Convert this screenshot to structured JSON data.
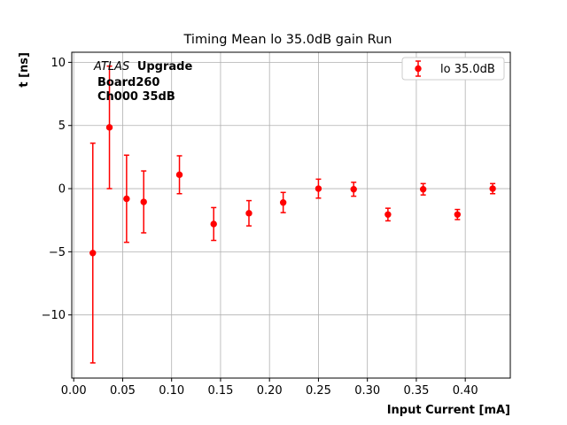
{
  "chart_data": {
    "type": "scatter",
    "title": "Timing Mean lo 35.0dB gain Run",
    "xlabel": "Input Current [mA]",
    "ylabel": "t [ns]",
    "xlim": [
      -0.002,
      0.446
    ],
    "ylim": [
      -15.0,
      10.8
    ],
    "x_ticks": [
      0.0,
      0.05,
      0.1,
      0.15,
      0.2,
      0.25,
      0.3,
      0.35,
      0.4
    ],
    "x_tick_labels": [
      "0.00",
      "0.05",
      "0.10",
      "0.15",
      "0.20",
      "0.25",
      "0.30",
      "0.35",
      "0.40"
    ],
    "y_ticks": [
      10,
      5,
      0,
      -5,
      -10
    ],
    "y_tick_labels": [
      "10",
      "5",
      "0",
      "−5",
      "−10"
    ],
    "grid": true,
    "legend_position": "top-right",
    "series": [
      {
        "name": "lo 35.0dB",
        "color": "#ff0000",
        "marker": "circle",
        "error_bars": true,
        "points": [
          {
            "x": 0.0195,
            "y": -5.1,
            "err": 8.7
          },
          {
            "x": 0.0365,
            "y": 4.85,
            "err": 4.85
          },
          {
            "x": 0.054,
            "y": -0.8,
            "err": 3.45
          },
          {
            "x": 0.0715,
            "y": -1.05,
            "err": 2.45
          },
          {
            "x": 0.108,
            "y": 1.1,
            "err": 1.5
          },
          {
            "x": 0.143,
            "y": -2.8,
            "err": 1.3
          },
          {
            "x": 0.179,
            "y": -1.95,
            "err": 1.0
          },
          {
            "x": 0.214,
            "y": -1.1,
            "err": 0.8
          },
          {
            "x": 0.25,
            "y": 0.0,
            "err": 0.75
          },
          {
            "x": 0.286,
            "y": -0.05,
            "err": 0.55
          },
          {
            "x": 0.321,
            "y": -2.05,
            "err": 0.5
          },
          {
            "x": 0.357,
            "y": -0.05,
            "err": 0.45
          },
          {
            "x": 0.392,
            "y": -2.05,
            "err": 0.4
          },
          {
            "x": 0.428,
            "y": 0.0,
            "err": 0.4
          }
        ]
      }
    ],
    "annotation": {
      "italic_part": "ATLAS",
      "bold_part": "Upgrade",
      "line2": "Board260",
      "line3": "Ch000 35dB"
    }
  }
}
